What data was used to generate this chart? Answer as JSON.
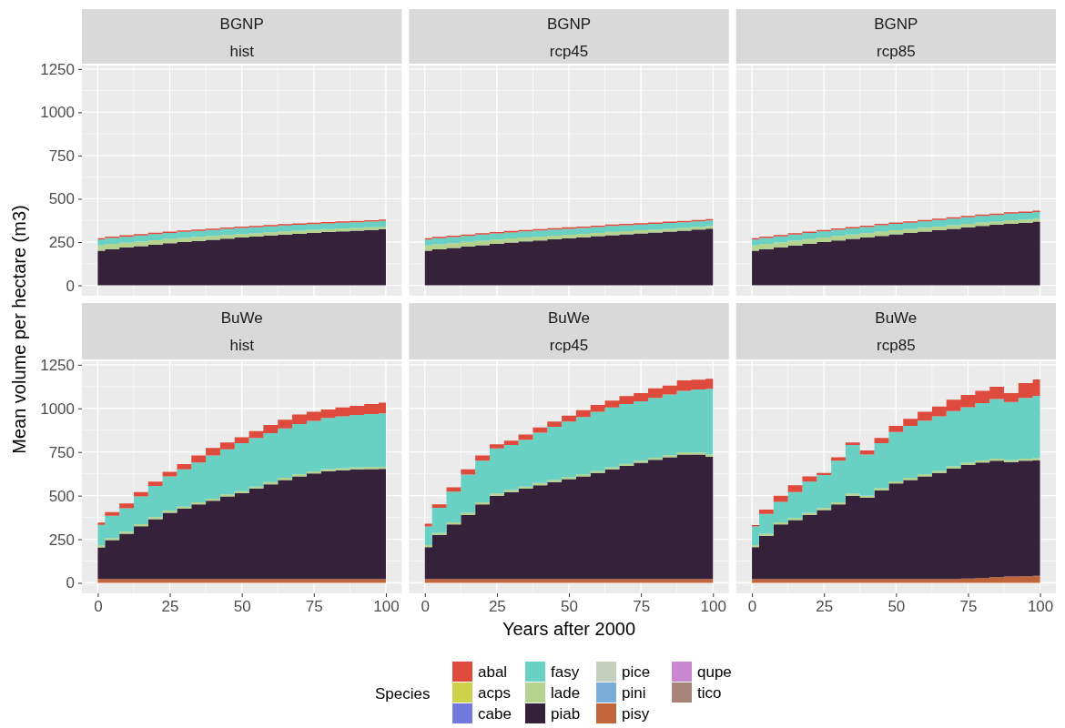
{
  "chart_data": [
    {
      "type": "area",
      "stacked": true,
      "title": "BGNP",
      "subtitle": "hist",
      "legend": "bottom",
      "legend_title": "Species",
      "grid": true,
      "tick_labels": "y",
      "x": [
        0,
        5,
        10,
        15,
        20,
        25,
        30,
        35,
        40,
        45,
        50,
        55,
        60,
        65,
        70,
        75,
        80,
        85,
        90,
        95,
        100
      ],
      "xlim": [
        -5.5,
        105.5
      ],
      "ylim": [
        -60,
        1270
      ],
      "xticks": [
        0,
        25,
        50,
        75,
        100
      ],
      "yticks": [
        0,
        250,
        500,
        750,
        1000,
        1250
      ],
      "series": [
        {
          "name": "tico",
          "color": "#a88478",
          "values": [
            null,
            null,
            null,
            null,
            null,
            null,
            null,
            null,
            null,
            null,
            null,
            null,
            null,
            null,
            null,
            null,
            null,
            null,
            null,
            null,
            null
          ]
        },
        {
          "name": "qupe",
          "color": "#c987d1",
          "values": [
            null,
            null,
            null,
            null,
            null,
            null,
            null,
            null,
            null,
            null,
            null,
            null,
            null,
            null,
            null,
            null,
            null,
            null,
            null,
            null,
            null
          ]
        },
        {
          "name": "pisy",
          "color": "#c0643a",
          "values": [
            null,
            null,
            null,
            null,
            null,
            null,
            null,
            null,
            null,
            null,
            null,
            null,
            null,
            null,
            null,
            null,
            null,
            null,
            null,
            null,
            null
          ]
        },
        {
          "name": "pini",
          "color": "#7aaed8",
          "values": [
            null,
            null,
            null,
            null,
            null,
            null,
            null,
            null,
            null,
            null,
            null,
            null,
            null,
            null,
            null,
            null,
            null,
            null,
            null,
            null,
            null
          ]
        },
        {
          "name": "pice",
          "color": "#c4d0bd",
          "values": [
            null,
            null,
            null,
            null,
            null,
            null,
            null,
            null,
            null,
            null,
            null,
            null,
            null,
            null,
            null,
            null,
            null,
            null,
            null,
            null,
            null
          ]
        },
        {
          "name": "piab",
          "color": "#35213a",
          "values": [
            200,
            210,
            218,
            226,
            235,
            243,
            250,
            257,
            263,
            270,
            276,
            282,
            288,
            293,
            298,
            303,
            308,
            312,
            316,
            320,
            325
          ]
        },
        {
          "name": "lade",
          "color": "#b3d38f",
          "values": [
            30,
            29,
            28,
            27,
            26,
            25,
            24,
            23,
            22,
            21,
            20,
            20,
            19,
            19,
            18,
            18,
            17,
            17,
            16,
            16,
            15
          ]
        },
        {
          "name": "fasy",
          "color": "#68d1c4",
          "values": [
            35,
            35,
            35,
            35,
            35,
            35,
            35,
            35,
            35,
            35,
            35,
            34,
            34,
            34,
            34,
            33,
            33,
            33,
            33,
            32,
            32
          ]
        },
        {
          "name": "cabe",
          "color": "#7279dc",
          "values": [
            null,
            null,
            null,
            null,
            null,
            null,
            null,
            null,
            null,
            null,
            null,
            null,
            null,
            null,
            null,
            null,
            null,
            null,
            null,
            null,
            null
          ]
        },
        {
          "name": "acps",
          "color": "#cdd24a",
          "values": [
            null,
            null,
            null,
            null,
            null,
            null,
            null,
            null,
            null,
            null,
            null,
            null,
            null,
            null,
            null,
            null,
            null,
            null,
            null,
            null,
            null
          ]
        },
        {
          "name": "abal",
          "color": "#de4a3c",
          "values": [
            8,
            8,
            8,
            8,
            8,
            8,
            8,
            8,
            8,
            8,
            8,
            8,
            8,
            8,
            8,
            8,
            8,
            8,
            8,
            8,
            8
          ]
        }
      ]
    },
    {
      "type": "area",
      "stacked": true,
      "title": "BGNP",
      "subtitle": "rcp45",
      "legend": "bottom",
      "grid": true,
      "tick_labels": false,
      "x": [
        0,
        5,
        10,
        15,
        20,
        25,
        30,
        35,
        40,
        45,
        50,
        55,
        60,
        65,
        70,
        75,
        80,
        85,
        90,
        95,
        100
      ],
      "xlim": [
        -5.5,
        105.5
      ],
      "ylim": [
        -60,
        1270
      ],
      "xticks": [
        0,
        25,
        50,
        75,
        100
      ],
      "yticks": [
        0,
        250,
        500,
        750,
        1000,
        1250
      ],
      "series": [
        {
          "color": "#35213a",
          "values": [
            200,
            208,
            216,
            224,
            232,
            240,
            247,
            254,
            260,
            266,
            272,
            278,
            284,
            290,
            295,
            300,
            305,
            310,
            316,
            322,
            328
          ]
        },
        {
          "color": "#b3d38f",
          "values": [
            30,
            29,
            28,
            27,
            26,
            25,
            24,
            23,
            22,
            21,
            20,
            20,
            19,
            19,
            18,
            18,
            17,
            17,
            16,
            16,
            15
          ]
        },
        {
          "color": "#68d1c4",
          "values": [
            35,
            35,
            35,
            35,
            35,
            35,
            35,
            35,
            35,
            35,
            35,
            34,
            34,
            34,
            34,
            33,
            33,
            33,
            33,
            32,
            32
          ]
        },
        {
          "color": "#de4a3c",
          "values": [
            8,
            8,
            8,
            8,
            8,
            8,
            8,
            8,
            8,
            8,
            8,
            8,
            8,
            8,
            8,
            8,
            8,
            8,
            8,
            8,
            8
          ]
        }
      ]
    },
    {
      "type": "area",
      "stacked": true,
      "title": "BGNP",
      "subtitle": "rcp85",
      "legend": "bottom",
      "grid": true,
      "tick_labels": false,
      "x": [
        0,
        5,
        10,
        15,
        20,
        25,
        30,
        35,
        40,
        45,
        50,
        55,
        60,
        65,
        70,
        75,
        80,
        85,
        90,
        95,
        100
      ],
      "xlim": [
        -5.5,
        105.5
      ],
      "ylim": [
        -60,
        1270
      ],
      "xticks": [
        0,
        25,
        50,
        75,
        100
      ],
      "yticks": [
        0,
        250,
        500,
        750,
        1000,
        1250
      ],
      "series": [
        {
          "color": "#35213a",
          "values": [
            200,
            210,
            220,
            230,
            240,
            250,
            259,
            268,
            277,
            286,
            295,
            303,
            311,
            319,
            327,
            335,
            343,
            350,
            357,
            362,
            368
          ]
        },
        {
          "color": "#b3d38f",
          "values": [
            30,
            29,
            28,
            28,
            27,
            26,
            26,
            25,
            24,
            24,
            23,
            22,
            22,
            21,
            21,
            20,
            20,
            19,
            19,
            18,
            18
          ]
        },
        {
          "color": "#68d1c4",
          "values": [
            35,
            35,
            35,
            35,
            36,
            36,
            36,
            36,
            36,
            37,
            37,
            37,
            37,
            37,
            38,
            38,
            38,
            38,
            38,
            38,
            38
          ]
        },
        {
          "color": "#de4a3c",
          "values": [
            8,
            8,
            8,
            8,
            8,
            8,
            8,
            8,
            8,
            8,
            8,
            8,
            8,
            8,
            8,
            8,
            8,
            8,
            8,
            8,
            8
          ]
        }
      ]
    },
    {
      "type": "area",
      "stacked": true,
      "title": "BuWe",
      "subtitle": "hist",
      "legend": "bottom",
      "grid": true,
      "ylabel": "Mean volume per hectare (m3)",
      "x": [
        0,
        5,
        10,
        15,
        20,
        25,
        30,
        35,
        40,
        45,
        50,
        55,
        60,
        65,
        70,
        75,
        80,
        85,
        90,
        95,
        100
      ],
      "xlim": [
        -5.5,
        105.5
      ],
      "ylim": [
        -60,
        1270
      ],
      "xticks": [
        0,
        25,
        50,
        75,
        100
      ],
      "yticks": [
        0,
        250,
        500,
        750,
        1000,
        1250
      ],
      "series": [
        {
          "color": "#c0643a",
          "values": [
            22,
            22,
            22,
            22,
            22,
            22,
            22,
            22,
            22,
            22,
            22,
            22,
            22,
            22,
            22,
            22,
            22,
            22,
            22,
            22,
            22
          ]
        },
        {
          "color": "#35213a",
          "values": [
            182,
            223,
            259,
            303,
            343,
            380,
            403,
            428,
            449,
            473,
            492,
            518,
            543,
            568,
            588,
            605,
            618,
            623,
            628,
            630,
            631
          ]
        },
        {
          "color": "#b3d38f",
          "values": [
            12,
            12,
            12,
            12,
            12,
            12,
            12,
            12,
            12,
            12,
            12,
            12,
            12,
            12,
            12,
            12,
            12,
            12,
            12,
            12,
            12
          ]
        },
        {
          "color": "#68d1c4",
          "values": [
            117,
            128,
            135,
            158,
            178,
            196,
            213,
            228,
            247,
            258,
            274,
            278,
            281,
            283,
            288,
            290,
            293,
            298,
            300,
            303,
            307
          ]
        },
        {
          "color": "#de4a3c",
          "values": [
            12,
            20,
            27,
            25,
            25,
            26,
            30,
            40,
            43,
            40,
            34,
            40,
            47,
            50,
            55,
            52,
            48,
            50,
            53,
            58,
            61
          ]
        }
      ]
    },
    {
      "type": "area",
      "stacked": true,
      "title": "BuWe",
      "subtitle": "rcp45",
      "legend": "bottom",
      "grid": true,
      "tick_labels": "x",
      "xlabel": "Years after 2000",
      "x": [
        0,
        5,
        10,
        15,
        20,
        25,
        30,
        35,
        40,
        45,
        50,
        55,
        60,
        65,
        70,
        75,
        80,
        85,
        90,
        95,
        100
      ],
      "xlim": [
        -5.5,
        105.5
      ],
      "ylim": [
        -60,
        1270
      ],
      "xticks": [
        0,
        25,
        50,
        75,
        100
      ],
      "yticks": [
        0,
        250,
        500,
        750,
        1000,
        1250
      ],
      "series": [
        {
          "color": "#c0643a",
          "values": [
            22,
            22,
            22,
            22,
            22,
            22,
            22,
            22,
            22,
            22,
            22,
            22,
            22,
            22,
            22,
            22,
            22,
            22,
            22,
            22,
            22
          ]
        },
        {
          "color": "#35213a",
          "values": [
            183,
            253,
            313,
            368,
            428,
            478,
            498,
            518,
            538,
            556,
            572,
            588,
            608,
            628,
            648,
            666,
            683,
            698,
            714,
            713,
            701
          ]
        },
        {
          "color": "#b3d38f",
          "values": [
            12,
            12,
            12,
            12,
            12,
            12,
            12,
            12,
            12,
            12,
            12,
            12,
            12,
            12,
            12,
            12,
            12,
            12,
            12,
            12,
            12
          ]
        },
        {
          "color": "#68d1c4",
          "values": [
            106,
            143,
            176,
            218,
            238,
            258,
            258,
            268,
            288,
            305,
            318,
            328,
            338,
            343,
            343,
            341,
            343,
            348,
            352,
            361,
            377
          ]
        },
        {
          "color": "#de4a3c",
          "values": [
            16,
            20,
            24,
            30,
            30,
            24,
            25,
            30,
            30,
            30,
            35,
            40,
            40,
            40,
            45,
            47,
            55,
            50,
            60,
            57,
            58
          ]
        }
      ]
    },
    {
      "type": "area",
      "stacked": true,
      "title": "BuWe",
      "subtitle": "rcp85",
      "legend": "bottom",
      "grid": true,
      "tick_labels": "x",
      "x": [
        0,
        5,
        10,
        15,
        20,
        25,
        30,
        35,
        40,
        45,
        50,
        55,
        60,
        65,
        70,
        75,
        80,
        85,
        90,
        95,
        100
      ],
      "xlim": [
        -5.5,
        105.5
      ],
      "ylim": [
        -60,
        1270
      ],
      "xticks": [
        0,
        25,
        50,
        75,
        100
      ],
      "yticks": [
        0,
        250,
        500,
        750,
        1000,
        1250
      ],
      "series": [
        {
          "color": "#c0643a",
          "values": [
            22,
            22,
            22,
            22,
            22,
            22,
            22,
            22,
            22,
            22,
            22,
            22,
            22,
            22,
            22,
            25,
            28,
            32,
            36,
            38,
            40
          ]
        },
        {
          "color": "#35213a",
          "values": [
            183,
            248,
            313,
            338,
            368,
            395,
            428,
            478,
            466,
            508,
            548,
            568,
            588,
            608,
            633,
            651,
            662,
            668,
            656,
            662,
            662
          ]
        },
        {
          "color": "#b3d38f",
          "values": [
            12,
            12,
            12,
            12,
            12,
            12,
            12,
            12,
            12,
            12,
            12,
            12,
            12,
            12,
            12,
            12,
            12,
            12,
            12,
            12,
            12
          ]
        },
        {
          "color": "#68d1c4",
          "values": [
            106,
            113,
            117,
            148,
            178,
            189,
            238,
            278,
            236,
            258,
            283,
            298,
            308,
            313,
            318,
            318,
            328,
            341,
            333,
            348,
            358
          ]
        },
        {
          "color": "#de4a3c",
          "values": [
            8,
            25,
            36,
            40,
            30,
            12,
            20,
            15,
            23,
            30,
            35,
            40,
            50,
            55,
            65,
            71,
            70,
            71,
            50,
            85,
            94
          ]
        }
      ]
    }
  ]
}
